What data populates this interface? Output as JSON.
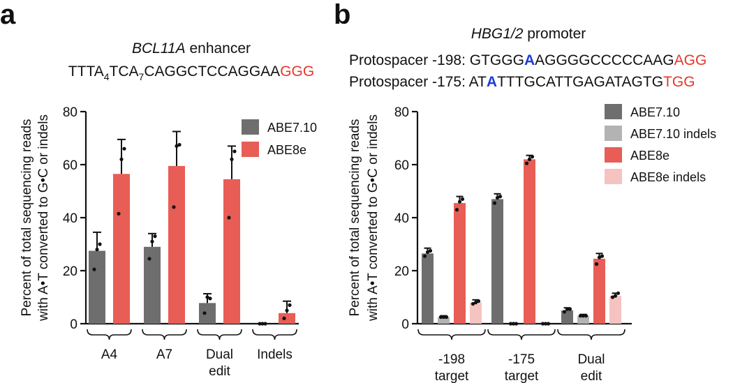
{
  "panel_a": {
    "letter": "a",
    "title_italic": "BCL11A",
    "title_rest": " enhancer",
    "sequence": {
      "part1": "TTTA",
      "sub1": "4",
      "part2": "TCA",
      "sub2": "7",
      "part3": "CAGGCTCCAGGAA",
      "pam": "GGG"
    }
  },
  "panel_b": {
    "letter": "b",
    "title_italic": "HBG1/2",
    "title_rest": " promoter",
    "line1": {
      "label": "Protospacer -198: ",
      "pre": "GTGGG",
      "edit": "A",
      "post": "AGGGGCCCCCAAG",
      "pam": "AGG"
    },
    "line2": {
      "label": "Protospacer -175: ",
      "pre": "AT",
      "edit": "A",
      "post": "TTTGCATTGAGATAGTG",
      "pam": "TGG"
    }
  },
  "colors": {
    "abe710": "#6e6e6e",
    "abe710_indels": "#b3b3b3",
    "abe8e": "#e85d55",
    "abe8e_indels": "#f5c3c0",
    "pam": "#e8352a",
    "edit_base": "#1a3fd6"
  },
  "chart_data": [
    {
      "type": "bar",
      "ylabel_line1": "Percent of total sequencing reads",
      "ylabel_line2": "with A•T converted to G•C or indels",
      "ylim": [
        0,
        80
      ],
      "yticks": [
        "0",
        "20",
        "40",
        "60",
        "80"
      ],
      "categories": [
        [
          "A4"
        ],
        [
          "A7"
        ],
        [
          "Dual",
          "edit"
        ],
        [
          "Indels"
        ]
      ],
      "legend_position": "top-right",
      "series": [
        {
          "name": "ABE7.10",
          "values": [
            27.5,
            29,
            7.8,
            0.1
          ],
          "errors": [
            7,
            5,
            3.5,
            0
          ],
          "points": [
            [
              20.5,
              28,
              30
            ],
            [
              24.5,
              31,
              33
            ],
            [
              4,
              10,
              9.5
            ],
            [
              0,
              0,
              0
            ]
          ]
        },
        {
          "name": "ABE8e",
          "values": [
            56.5,
            59.5,
            54.5,
            4
          ],
          "errors": [
            13,
            13,
            12.5,
            4.5
          ],
          "points": [
            [
              41.5,
              62,
              66
            ],
            [
              44,
              67,
              67.5
            ],
            [
              40,
              62,
              65
            ],
            [
              2,
              5,
              7
            ]
          ]
        }
      ]
    },
    {
      "type": "bar",
      "ylabel_line1": "Percent of total sequencing reads",
      "ylabel_line2": "with A•T converted to G•C or indels",
      "ylim": [
        0,
        80
      ],
      "yticks": [
        "0",
        "20",
        "40",
        "60",
        "80"
      ],
      "categories": [
        [
          "-198",
          "target"
        ],
        [
          "-175",
          "target"
        ],
        [
          "Dual",
          "edit"
        ]
      ],
      "legend_position": "top-right",
      "series": [
        {
          "name": "ABE7.10",
          "values": [
            26.5,
            47,
            5
          ],
          "errors": [
            2,
            2,
            1
          ],
          "points": [
            [
              25.5,
              27,
              27.5
            ],
            [
              45.5,
              47.5,
              48
            ],
            [
              4.5,
              5.5,
              5.5
            ]
          ]
        },
        {
          "name": "ABE7.10 indels",
          "values": [
            2.5,
            0.1,
            3
          ],
          "errors": [
            0.5,
            0,
            0.5
          ],
          "points": [
            [
              2.5,
              2.5,
              2.5
            ],
            [
              0,
              0,
              0
            ],
            [
              3,
              3,
              3
            ]
          ]
        },
        {
          "name": "ABE8e",
          "values": [
            45.5,
            62,
            24.5
          ],
          "errors": [
            2.5,
            1.5,
            2
          ],
          "points": [
            [
              43,
              46,
              47
            ],
            [
              60.5,
              62,
              63
            ],
            [
              22.5,
              25,
              25.5
            ]
          ]
        },
        {
          "name": "ABE8e indels",
          "values": [
            8,
            0.1,
            10.5
          ],
          "errors": [
            1,
            0,
            1
          ],
          "points": [
            [
              7.5,
              8,
              8.5
            ],
            [
              0,
              0,
              0
            ],
            [
              10,
              10.5,
              11.5
            ]
          ]
        }
      ]
    }
  ]
}
